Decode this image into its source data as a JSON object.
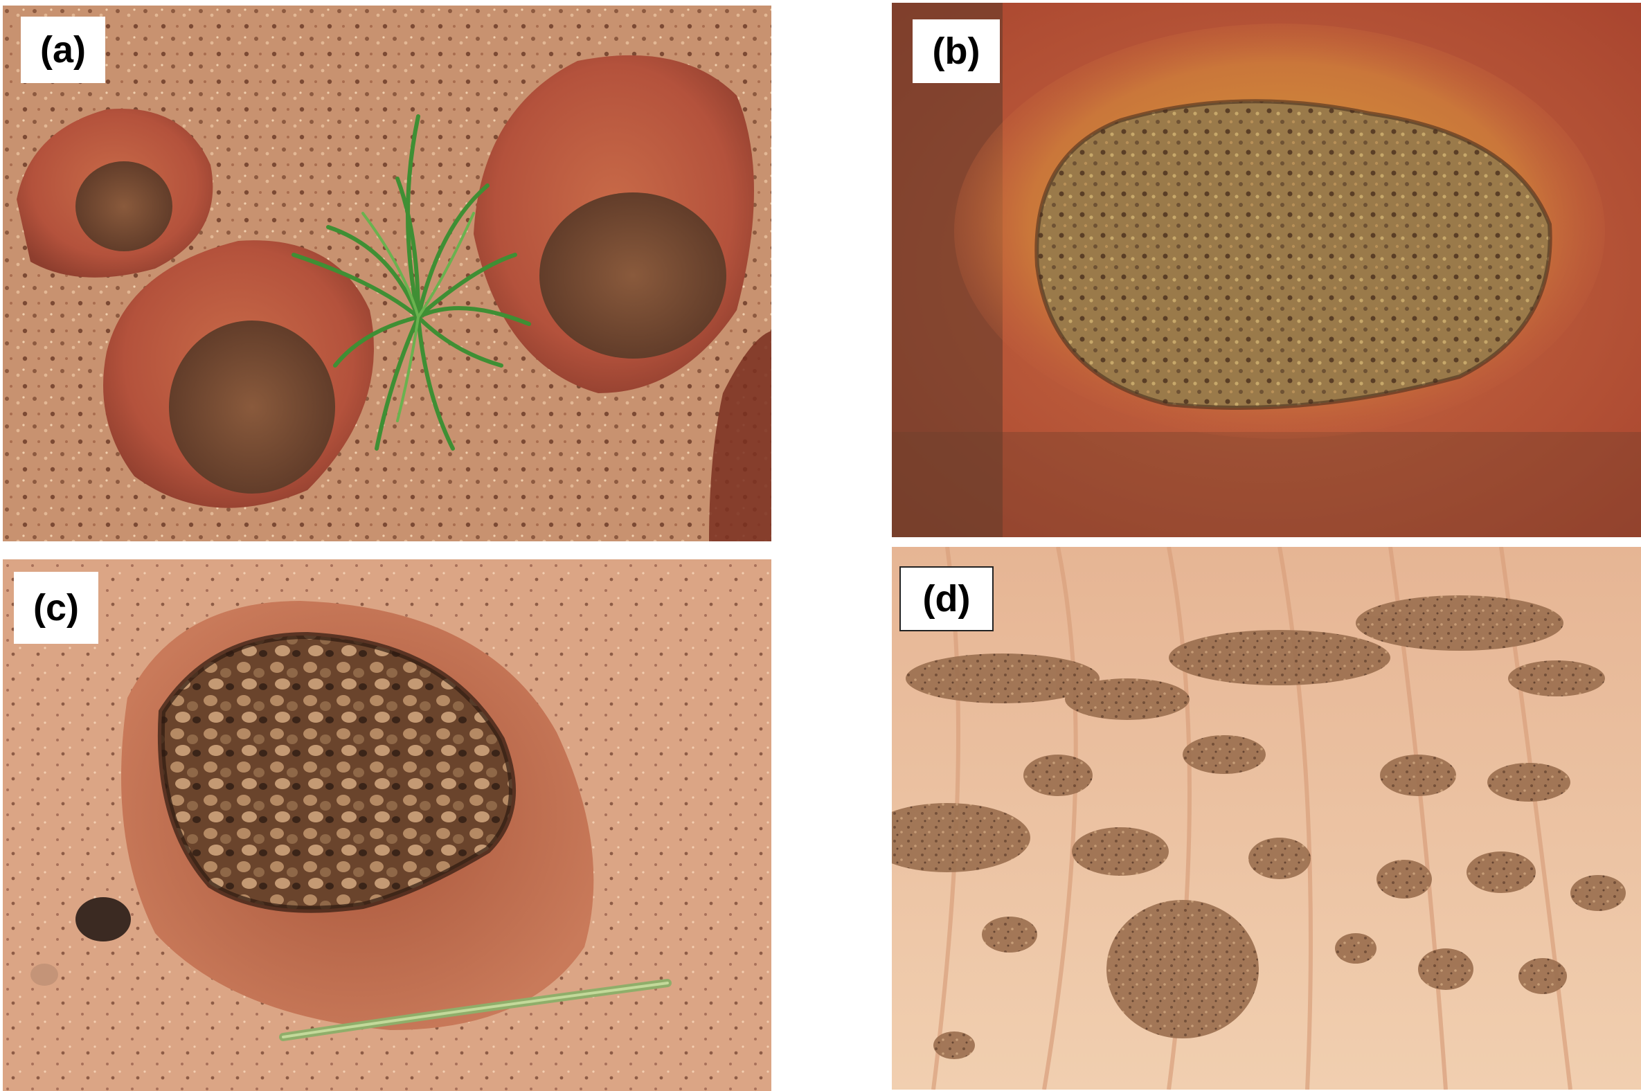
{
  "figure": {
    "panels": [
      {
        "id": "a",
        "label": "(a)",
        "scene": "three-eroded-nodules-with-grass"
      },
      {
        "id": "b",
        "label": "(b)",
        "scene": "oval-nodule-closeup-yellow-rim"
      },
      {
        "id": "c",
        "label": "(c)",
        "scene": "cratered-nodule-with-grass-stem"
      },
      {
        "id": "d",
        "label": "(d)",
        "scene": "rippled-sandstone-with-dark-patches"
      }
    ]
  },
  "colors": {
    "sand": "#c99372",
    "sand_light": "#e2b994",
    "rock_red": "#b8503a",
    "rock_orange": "#d07a4a",
    "yellow_rim": "#d9a13a",
    "crater_dark": "#5a3a26",
    "grass": "#4a9a3a",
    "pale_sandstone": "#efc7a3"
  }
}
